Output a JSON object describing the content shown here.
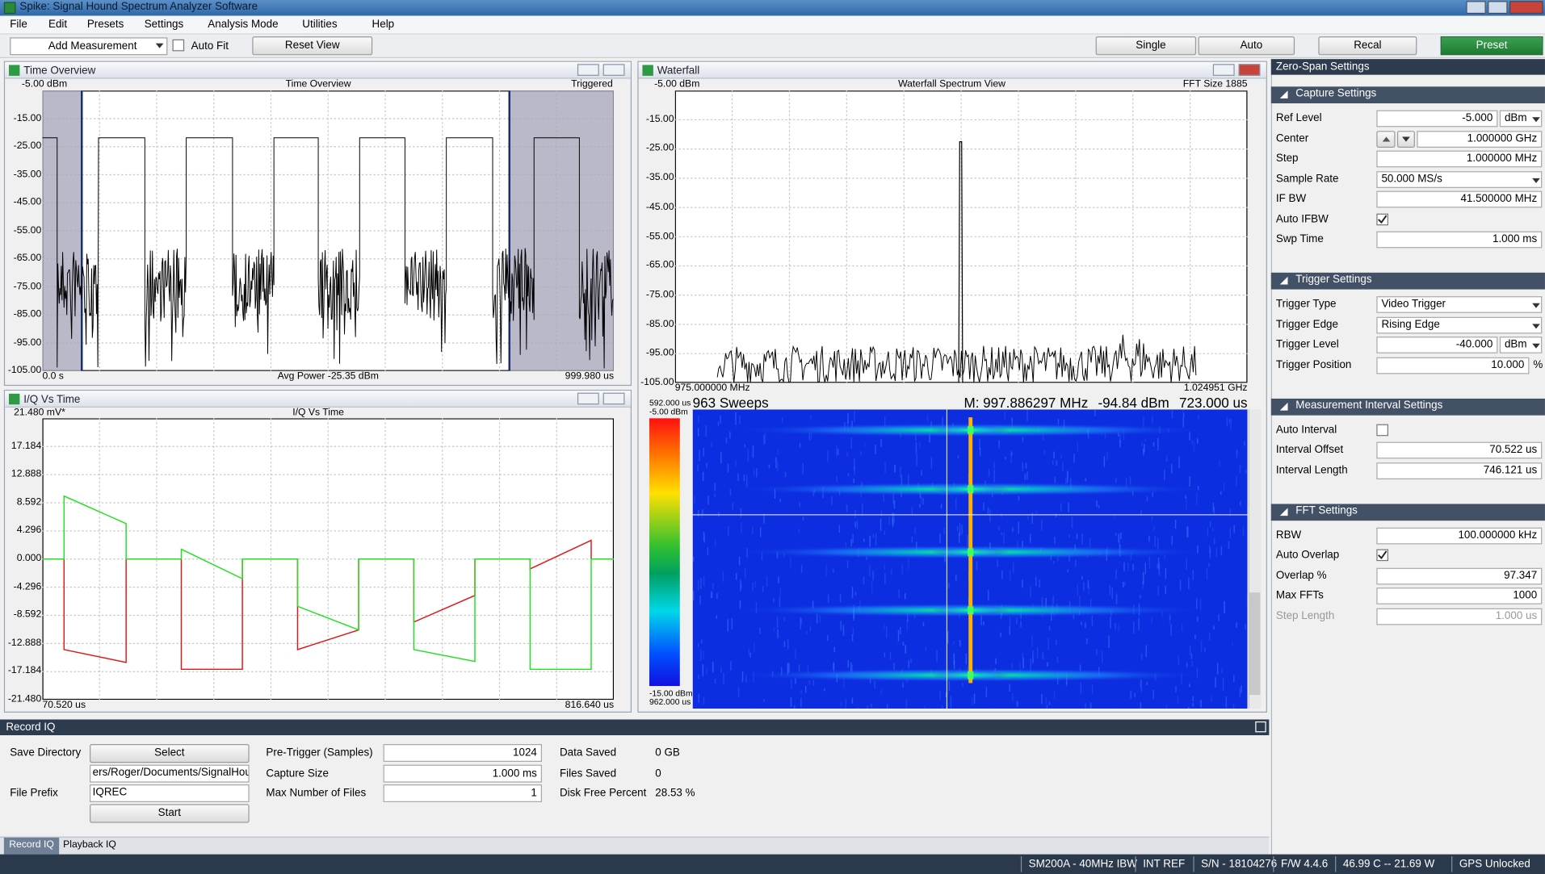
{
  "window_title": "Spike: Signal Hound Spectrum Analyzer Software",
  "menu": [
    "File",
    "Edit",
    "Presets",
    "Settings",
    "Analysis Mode",
    "Utilities",
    "Help"
  ],
  "toolbar": {
    "add_measurement": "Add Measurement",
    "auto_fit": "Auto Fit",
    "reset_view": "Reset View",
    "single": "Single",
    "auto": "Auto",
    "recal": "Recal",
    "preset": "Preset"
  },
  "time_overview": {
    "panel_title": "Time Overview",
    "plot_title": "Time Overview",
    "status": "Triggered",
    "ref": "-5.00 dBm",
    "y_labels": [
      "-15.00",
      "-25.00",
      "-35.00",
      "-45.00",
      "-55.00",
      "-65.00",
      "-75.00",
      "-85.00",
      "-95.00",
      "-105.00"
    ],
    "x_start": "0.0 s",
    "x_end": "999.980 us",
    "footer": "Avg Power -25.35 dBm"
  },
  "iq": {
    "panel_title": "I/Q Vs Time",
    "plot_title": "I/Q Vs Time",
    "y_labels": [
      "21.480 mV*",
      "17.184",
      "12.888",
      "8.592",
      "4.296",
      "0.000",
      "-4.296",
      "-8.592",
      "-12.888",
      "-17.184",
      "-21.480"
    ],
    "x_start": "70.520 us",
    "x_end": "816.640 us"
  },
  "waterfall": {
    "panel_title": "Waterfall",
    "plot_title": "Waterfall Spectrum View",
    "fft": "FFT Size 1885",
    "ref": "-5.00 dBm",
    "y_labels": [
      "-15.00",
      "-25.00",
      "-35.00",
      "-45.00",
      "-55.00",
      "-65.00",
      "-75.00",
      "-85.00",
      "-95.00",
      "-105.00"
    ],
    "x_start": "975.000000 MHz",
    "x_end": "1.024951 GHz",
    "sweeps": "963 Sweeps",
    "marker": [
      "M: 997.886297 MHz",
      "-94.84 dBm",
      "723.000 us"
    ],
    "scale_top": [
      "592.000 us",
      "-5.00 dBm"
    ],
    "scale_bottom": [
      "-15.00 dBm",
      "962.000 us"
    ]
  },
  "settings": {
    "header": "Zero-Span Settings",
    "sections": [
      {
        "title": "Capture Settings",
        "rows": [
          {
            "label": "Ref Level",
            "value": "-5.000",
            "unit": "dBm"
          },
          {
            "label": "Center",
            "value": "1.000000 GHz",
            "spin": true
          },
          {
            "label": "Step",
            "value": "1.000000 MHz"
          },
          {
            "label": "Sample Rate",
            "value": "50.000 MS/s",
            "dropdown": true
          },
          {
            "label": "IF BW",
            "value": "41.500000 MHz"
          },
          {
            "label": "Auto IFBW",
            "checked": true
          },
          {
            "label": "Swp Time",
            "value": "1.000 ms"
          }
        ]
      },
      {
        "title": "Trigger Settings",
        "rows": [
          {
            "label": "Trigger Type",
            "value": "Video Trigger",
            "dropdown": true
          },
          {
            "label": "Trigger Edge",
            "value": "Rising Edge",
            "dropdown": true
          },
          {
            "label": "Trigger Level",
            "value": "-40.000",
            "unit": "dBm"
          },
          {
            "label": "Trigger Position",
            "value": "10.000",
            "suffix": "%"
          }
        ]
      },
      {
        "title": "Measurement Interval Settings",
        "rows": [
          {
            "label": "Auto Interval",
            "checked": false
          },
          {
            "label": "Interval Offset",
            "value": "70.522 us"
          },
          {
            "label": "Interval Length",
            "value": "746.121 us"
          }
        ]
      },
      {
        "title": "FFT Settings",
        "rows": [
          {
            "label": "RBW",
            "value": "100.000000 kHz"
          },
          {
            "label": "Auto Overlap",
            "checked": true
          },
          {
            "label": "Overlap %",
            "value": "97.347"
          },
          {
            "label": "Max FFTs",
            "value": "1000"
          },
          {
            "label": "Step Length",
            "value": "1.000 us",
            "disabled": true
          }
        ]
      }
    ]
  },
  "record_iq": {
    "title": "Record IQ",
    "save_directory": "Save Directory",
    "select": "Select",
    "path": "ers/Roger/Documents/SignalHound",
    "file_prefix": "File Prefix",
    "prefix_value": "IQREC",
    "start": "Start",
    "fields": [
      {
        "label": "Pre-Trigger (Samples)",
        "value": "1024"
      },
      {
        "label": "Capture Size",
        "value": "1.000 ms"
      },
      {
        "label": "Max Number of Files",
        "value": "1"
      }
    ],
    "stats": [
      {
        "label": "Data Saved",
        "value": "0 GB"
      },
      {
        "label": "Files Saved",
        "value": "0"
      },
      {
        "label": "Disk Free Percent",
        "value": "28.53 %"
      }
    ]
  },
  "tabs": [
    "Record IQ",
    "Playback IQ"
  ],
  "status": [
    "SM200A - 40MHz IBW",
    "INT REF",
    "S/N - 18104276",
    "F/W 4.4.6",
    "46.99 C -- 21.69 W",
    "GPS Unlocked"
  ]
}
